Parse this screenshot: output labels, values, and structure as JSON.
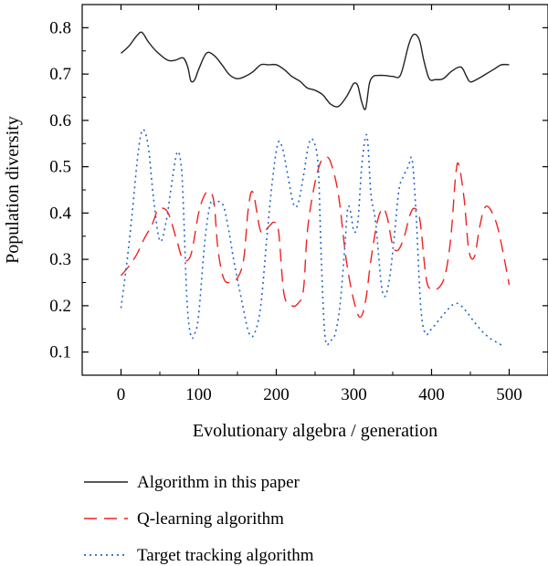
{
  "chart_data": {
    "type": "line",
    "title": "",
    "xlabel": "Evolutionary algebra / generation",
    "ylabel": "Population diversity",
    "xlim": [
      -50,
      550
    ],
    "ylim": [
      0.05,
      0.85
    ],
    "xticks": [
      0,
      100,
      200,
      300,
      400,
      500
    ],
    "xtick_labels": [
      "0",
      "100",
      "200",
      "300",
      "400",
      "500"
    ],
    "yticks": [
      0.1,
      0.2,
      0.3,
      0.4,
      0.5,
      0.6,
      0.7,
      0.8
    ],
    "ytick_labels": [
      "0.1",
      "0.2",
      "0.3",
      "0.4",
      "0.5",
      "0.6",
      "0.7",
      "0.8"
    ],
    "grid": false,
    "legend_position": "below",
    "series": [
      {
        "name": "Algorithm in this paper",
        "color": "#222222",
        "style": "solid",
        "x": [
          0,
          10,
          20,
          27,
          35,
          45,
          60,
          70,
          80,
          86,
          90,
          95,
          100,
          110,
          120,
          130,
          140,
          150,
          160,
          170,
          180,
          190,
          200,
          210,
          220,
          230,
          240,
          250,
          260,
          270,
          280,
          290,
          295,
          300,
          305,
          310,
          315,
          320,
          325,
          330,
          340,
          350,
          360,
          370,
          375,
          380,
          385,
          390,
          397,
          405,
          415,
          425,
          435,
          440,
          445,
          450,
          460,
          470,
          480,
          490,
          500
        ],
        "y": [
          0.745,
          0.76,
          0.782,
          0.79,
          0.77,
          0.75,
          0.73,
          0.73,
          0.735,
          0.715,
          0.685,
          0.688,
          0.71,
          0.745,
          0.74,
          0.72,
          0.698,
          0.69,
          0.695,
          0.705,
          0.72,
          0.72,
          0.72,
          0.71,
          0.695,
          0.685,
          0.67,
          0.665,
          0.655,
          0.635,
          0.63,
          0.65,
          0.665,
          0.68,
          0.675,
          0.64,
          0.625,
          0.68,
          0.695,
          0.697,
          0.697,
          0.695,
          0.698,
          0.76,
          0.782,
          0.785,
          0.77,
          0.73,
          0.69,
          0.688,
          0.69,
          0.705,
          0.715,
          0.712,
          0.695,
          0.683,
          0.69,
          0.7,
          0.71,
          0.72,
          0.72
        ]
      },
      {
        "name": "Q-learning algorithm",
        "color": "#ee2222",
        "style": "dashed",
        "x": [
          0,
          10,
          20,
          30,
          40,
          47,
          55,
          62,
          72,
          80,
          90,
          100,
          108,
          115,
          120,
          125,
          132,
          140,
          150,
          158,
          164,
          170,
          180,
          190,
          197,
          203,
          210,
          220,
          228,
          235,
          240,
          248,
          256,
          263,
          270,
          280,
          290,
          300,
          308,
          315,
          322,
          330,
          337,
          343,
          350,
          357,
          365,
          372,
          378,
          385,
          393,
          400,
          410,
          418,
          425,
          431,
          435,
          442,
          448,
          455,
          462,
          468,
          475,
          485,
          495,
          500
        ],
        "y": [
          0.265,
          0.285,
          0.31,
          0.345,
          0.375,
          0.405,
          0.41,
          0.395,
          0.34,
          0.3,
          0.31,
          0.4,
          0.44,
          0.445,
          0.42,
          0.32,
          0.26,
          0.25,
          0.26,
          0.3,
          0.41,
          0.445,
          0.36,
          0.37,
          0.38,
          0.36,
          0.225,
          0.2,
          0.205,
          0.235,
          0.36,
          0.45,
          0.505,
          0.52,
          0.51,
          0.44,
          0.3,
          0.21,
          0.175,
          0.21,
          0.3,
          0.38,
          0.41,
          0.39,
          0.33,
          0.32,
          0.35,
          0.395,
          0.41,
          0.385,
          0.26,
          0.235,
          0.24,
          0.27,
          0.35,
          0.48,
          0.505,
          0.43,
          0.32,
          0.305,
          0.37,
          0.41,
          0.41,
          0.37,
          0.29,
          0.245
        ]
      },
      {
        "name": "Target tracking algorithm",
        "color": "#2266cc",
        "style": "dotted",
        "x": [
          0,
          8,
          15,
          22,
          28,
          35,
          42,
          50,
          58,
          65,
          72,
          77,
          80,
          85,
          90,
          95,
          100,
          108,
          115,
          120,
          126,
          132,
          138,
          145,
          152,
          158,
          165,
          172,
          180,
          188,
          195,
          202,
          208,
          215,
          222,
          228,
          235,
          242,
          248,
          254,
          258,
          263,
          270,
          276,
          282,
          288,
          292,
          296,
          300,
          305,
          310,
          315,
          318,
          322,
          328,
          335,
          340,
          346,
          352,
          358,
          364,
          370,
          375,
          380,
          386,
          392,
          400,
          410,
          420,
          430,
          438,
          446,
          455,
          465,
          475,
          485,
          490
        ],
        "y": [
          0.195,
          0.3,
          0.41,
          0.53,
          0.58,
          0.545,
          0.43,
          0.34,
          0.38,
          0.46,
          0.53,
          0.51,
          0.43,
          0.21,
          0.135,
          0.14,
          0.18,
          0.34,
          0.42,
          0.42,
          0.425,
          0.415,
          0.37,
          0.3,
          0.24,
          0.19,
          0.14,
          0.14,
          0.2,
          0.35,
          0.47,
          0.55,
          0.54,
          0.48,
          0.42,
          0.42,
          0.48,
          0.55,
          0.555,
          0.5,
          0.3,
          0.13,
          0.125,
          0.14,
          0.2,
          0.32,
          0.41,
          0.4,
          0.36,
          0.38,
          0.5,
          0.565,
          0.55,
          0.44,
          0.38,
          0.25,
          0.22,
          0.26,
          0.35,
          0.45,
          0.48,
          0.5,
          0.515,
          0.4,
          0.2,
          0.14,
          0.15,
          0.17,
          0.19,
          0.205,
          0.2,
          0.185,
          0.165,
          0.145,
          0.13,
          0.12,
          0.115
        ]
      }
    ]
  }
}
